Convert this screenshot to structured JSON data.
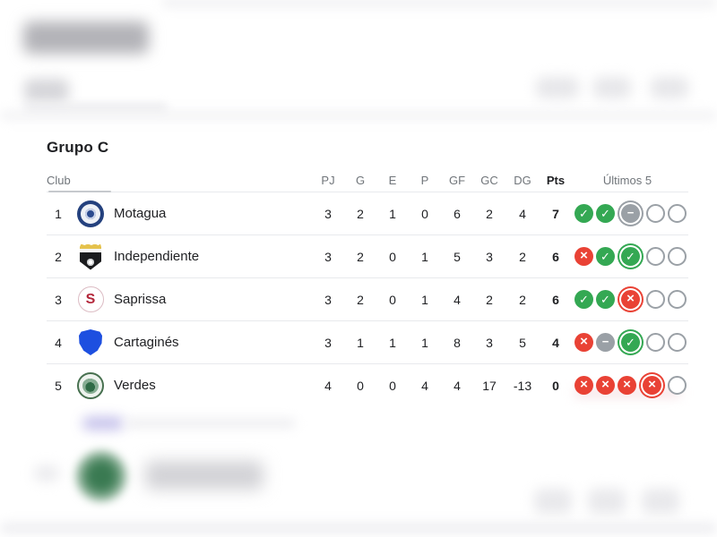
{
  "colors": {
    "win": "#34a853",
    "loss": "#e94235",
    "draw": "#9aa0a6",
    "divider": "#e8eaed",
    "text_primary": "#202124",
    "text_secondary": "#70757a",
    "cartagines_blue": "#1d4fe0",
    "motagua_navy": "#24417e",
    "saprissa_red": "#b3263a",
    "verdes_green": "#2f6b45"
  },
  "icon_glyphs": {
    "win": "✓",
    "loss": "×",
    "draw": "−",
    "none": ""
  },
  "table": {
    "title": "Grupo C",
    "club_header": "Club",
    "stat_headers": [
      "PJ",
      "G",
      "E",
      "P",
      "GF",
      "GC",
      "DG",
      "Pts"
    ],
    "form_header": "Últimos 5",
    "rows": [
      {
        "pos": "1",
        "team": "Motagua",
        "badge": "motagua",
        "badge_letter": "",
        "stats": [
          "3",
          "2",
          "1",
          "0",
          "6",
          "2",
          "4",
          "7"
        ],
        "form": [
          {
            "result": "win",
            "latest": false
          },
          {
            "result": "win",
            "latest": false
          },
          {
            "result": "draw",
            "latest": true
          },
          {
            "result": "none",
            "latest": false
          },
          {
            "result": "none",
            "latest": false
          }
        ]
      },
      {
        "pos": "2",
        "team": "Independiente",
        "badge": "independiente",
        "badge_letter": "",
        "stats": [
          "3",
          "2",
          "0",
          "1",
          "5",
          "3",
          "2",
          "6"
        ],
        "form": [
          {
            "result": "loss",
            "latest": false
          },
          {
            "result": "win",
            "latest": false
          },
          {
            "result": "win",
            "latest": true
          },
          {
            "result": "none",
            "latest": false
          },
          {
            "result": "none",
            "latest": false
          }
        ]
      },
      {
        "pos": "3",
        "team": "Saprissa",
        "badge": "saprissa",
        "badge_letter": "S",
        "stats": [
          "3",
          "2",
          "0",
          "1",
          "4",
          "2",
          "2",
          "6"
        ],
        "form": [
          {
            "result": "win",
            "latest": false
          },
          {
            "result": "win",
            "latest": false
          },
          {
            "result": "loss",
            "latest": true
          },
          {
            "result": "none",
            "latest": false
          },
          {
            "result": "none",
            "latest": false
          }
        ]
      },
      {
        "pos": "4",
        "team": "Cartaginés",
        "badge": "cartagines",
        "badge_letter": "",
        "stats": [
          "3",
          "1",
          "1",
          "1",
          "8",
          "3",
          "5",
          "4"
        ],
        "form": [
          {
            "result": "loss",
            "latest": false
          },
          {
            "result": "draw",
            "latest": false
          },
          {
            "result": "win",
            "latest": true
          },
          {
            "result": "none",
            "latest": false
          },
          {
            "result": "none",
            "latest": false
          }
        ]
      },
      {
        "pos": "5",
        "team": "Verdes",
        "badge": "verdes",
        "badge_letter": "",
        "stats": [
          "4",
          "0",
          "0",
          "4",
          "4",
          "17",
          "-13",
          "0"
        ],
        "form": [
          {
            "result": "loss",
            "latest": false
          },
          {
            "result": "loss",
            "latest": false
          },
          {
            "result": "loss",
            "latest": false
          },
          {
            "result": "loss",
            "latest": true
          },
          {
            "result": "none",
            "latest": false
          }
        ]
      }
    ]
  }
}
